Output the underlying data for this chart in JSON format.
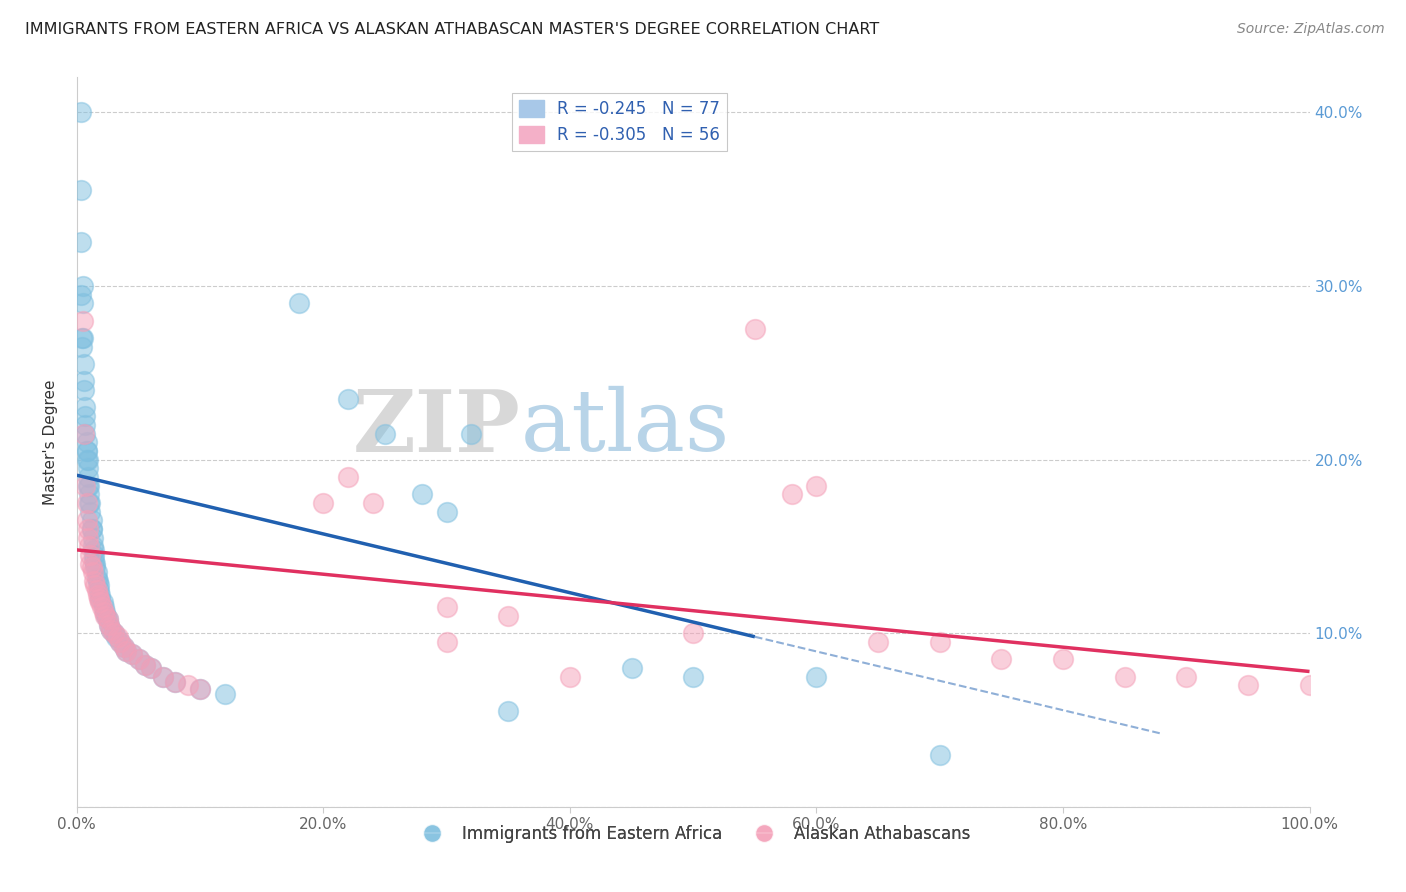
{
  "title": "IMMIGRANTS FROM EASTERN AFRICA VS ALASKAN ATHABASCAN MASTER'S DEGREE CORRELATION CHART",
  "source": "Source: ZipAtlas.com",
  "ylabel": "Master's Degree",
  "xlim": [
    0,
    1.0
  ],
  "ylim": [
    0,
    0.42
  ],
  "xticks": [
    0.0,
    0.2,
    0.4,
    0.6,
    0.8,
    1.0
  ],
  "yticks": [
    0.0,
    0.1,
    0.2,
    0.3,
    0.4
  ],
  "xticklabels": [
    "0.0%",
    "20.0%",
    "40.0%",
    "60.0%",
    "80.0%",
    "100.0%"
  ],
  "yticklabels_right": [
    "",
    "10.0%",
    "20.0%",
    "30.0%",
    "40.0%"
  ],
  "legend_labels": [
    "Immigrants from Eastern Africa",
    "Alaskan Athabascans"
  ],
  "blue_color": "#7fbfdf",
  "pink_color": "#f4a0b8",
  "blue_line_color": "#2060b0",
  "pink_line_color": "#e03060",
  "watermark_zip": "ZIP",
  "watermark_atlas": "atlas",
  "R_blue": -0.245,
  "N_blue": 77,
  "R_pink": -0.305,
  "N_pink": 56,
  "blue_line_x0": 0.0,
  "blue_line_y0": 0.191,
  "blue_line_x1": 0.55,
  "blue_line_y1": 0.098,
  "pink_line_x0": 0.0,
  "pink_line_y0": 0.148,
  "pink_line_x1": 1.0,
  "pink_line_y1": 0.078,
  "dash_line_x0": 0.42,
  "dash_line_y0": 0.115,
  "dash_line_x1": 0.85,
  "dash_line_y1": 0.02,
  "blue_points": [
    [
      0.003,
      0.4
    ],
    [
      0.003,
      0.355
    ],
    [
      0.003,
      0.325
    ],
    [
      0.003,
      0.295
    ],
    [
      0.004,
      0.27
    ],
    [
      0.004,
      0.265
    ],
    [
      0.005,
      0.3
    ],
    [
      0.005,
      0.29
    ],
    [
      0.005,
      0.27
    ],
    [
      0.006,
      0.255
    ],
    [
      0.006,
      0.245
    ],
    [
      0.006,
      0.24
    ],
    [
      0.007,
      0.23
    ],
    [
      0.007,
      0.225
    ],
    [
      0.007,
      0.22
    ],
    [
      0.007,
      0.215
    ],
    [
      0.008,
      0.21
    ],
    [
      0.008,
      0.205
    ],
    [
      0.008,
      0.205
    ],
    [
      0.008,
      0.2
    ],
    [
      0.009,
      0.2
    ],
    [
      0.009,
      0.195
    ],
    [
      0.009,
      0.19
    ],
    [
      0.009,
      0.185
    ],
    [
      0.01,
      0.185
    ],
    [
      0.01,
      0.18
    ],
    [
      0.01,
      0.175
    ],
    [
      0.011,
      0.175
    ],
    [
      0.011,
      0.17
    ],
    [
      0.012,
      0.165
    ],
    [
      0.012,
      0.16
    ],
    [
      0.012,
      0.16
    ],
    [
      0.013,
      0.155
    ],
    [
      0.013,
      0.15
    ],
    [
      0.014,
      0.148
    ],
    [
      0.014,
      0.145
    ],
    [
      0.014,
      0.142
    ],
    [
      0.015,
      0.14
    ],
    [
      0.015,
      0.138
    ],
    [
      0.016,
      0.135
    ],
    [
      0.016,
      0.132
    ],
    [
      0.017,
      0.13
    ],
    [
      0.018,
      0.128
    ],
    [
      0.018,
      0.125
    ],
    [
      0.019,
      0.122
    ],
    [
      0.019,
      0.12
    ],
    [
      0.021,
      0.118
    ],
    [
      0.022,
      0.115
    ],
    [
      0.023,
      0.112
    ],
    [
      0.024,
      0.11
    ],
    [
      0.025,
      0.108
    ],
    [
      0.026,
      0.105
    ],
    [
      0.028,
      0.102
    ],
    [
      0.03,
      0.1
    ],
    [
      0.032,
      0.098
    ],
    [
      0.035,
      0.095
    ],
    [
      0.038,
      0.092
    ],
    [
      0.04,
      0.09
    ],
    [
      0.045,
      0.088
    ],
    [
      0.05,
      0.085
    ],
    [
      0.055,
      0.082
    ],
    [
      0.06,
      0.08
    ],
    [
      0.07,
      0.075
    ],
    [
      0.08,
      0.072
    ],
    [
      0.1,
      0.068
    ],
    [
      0.12,
      0.065
    ],
    [
      0.18,
      0.29
    ],
    [
      0.22,
      0.235
    ],
    [
      0.25,
      0.215
    ],
    [
      0.28,
      0.18
    ],
    [
      0.3,
      0.17
    ],
    [
      0.32,
      0.215
    ],
    [
      0.35,
      0.055
    ],
    [
      0.45,
      0.08
    ],
    [
      0.5,
      0.075
    ],
    [
      0.6,
      0.075
    ],
    [
      0.7,
      0.03
    ]
  ],
  "pink_points": [
    [
      0.005,
      0.28
    ],
    [
      0.006,
      0.215
    ],
    [
      0.007,
      0.185
    ],
    [
      0.008,
      0.175
    ],
    [
      0.008,
      0.165
    ],
    [
      0.009,
      0.16
    ],
    [
      0.009,
      0.155
    ],
    [
      0.01,
      0.15
    ],
    [
      0.011,
      0.145
    ],
    [
      0.011,
      0.14
    ],
    [
      0.012,
      0.138
    ],
    [
      0.013,
      0.135
    ],
    [
      0.014,
      0.13
    ],
    [
      0.015,
      0.128
    ],
    [
      0.016,
      0.125
    ],
    [
      0.017,
      0.122
    ],
    [
      0.018,
      0.12
    ],
    [
      0.019,
      0.118
    ],
    [
      0.02,
      0.115
    ],
    [
      0.022,
      0.112
    ],
    [
      0.023,
      0.11
    ],
    [
      0.025,
      0.108
    ],
    [
      0.026,
      0.105
    ],
    [
      0.028,
      0.102
    ],
    [
      0.03,
      0.1
    ],
    [
      0.033,
      0.098
    ],
    [
      0.035,
      0.095
    ],
    [
      0.038,
      0.092
    ],
    [
      0.04,
      0.09
    ],
    [
      0.045,
      0.088
    ],
    [
      0.05,
      0.085
    ],
    [
      0.055,
      0.082
    ],
    [
      0.06,
      0.08
    ],
    [
      0.07,
      0.075
    ],
    [
      0.08,
      0.072
    ],
    [
      0.09,
      0.07
    ],
    [
      0.1,
      0.068
    ],
    [
      0.2,
      0.175
    ],
    [
      0.22,
      0.19
    ],
    [
      0.24,
      0.175
    ],
    [
      0.3,
      0.115
    ],
    [
      0.3,
      0.095
    ],
    [
      0.35,
      0.11
    ],
    [
      0.4,
      0.075
    ],
    [
      0.5,
      0.1
    ],
    [
      0.55,
      0.275
    ],
    [
      0.58,
      0.18
    ],
    [
      0.6,
      0.185
    ],
    [
      0.65,
      0.095
    ],
    [
      0.7,
      0.095
    ],
    [
      0.75,
      0.085
    ],
    [
      0.8,
      0.085
    ],
    [
      0.85,
      0.075
    ],
    [
      0.9,
      0.075
    ],
    [
      0.95,
      0.07
    ],
    [
      1.0,
      0.07
    ]
  ]
}
